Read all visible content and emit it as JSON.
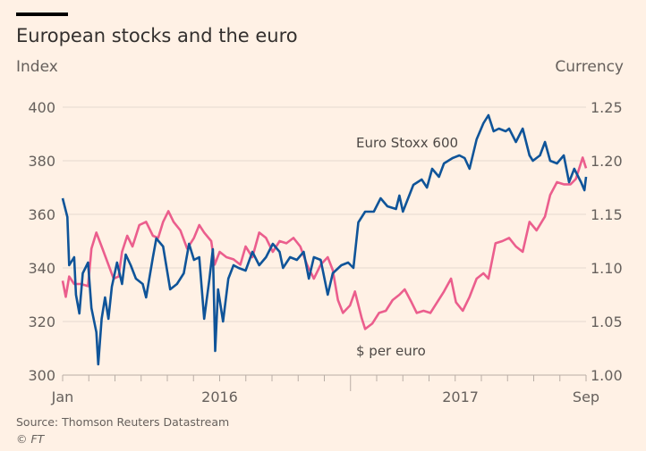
{
  "chart_data": {
    "type": "line",
    "title": "European stocks and the euro",
    "ylabel_left": "Index",
    "ylabel_right": "Currency",
    "ylim_left": [
      300,
      400
    ],
    "ylim_right": [
      1.0,
      1.25
    ],
    "yticks_left": [
      "400",
      "380",
      "360",
      "340",
      "320",
      "300"
    ],
    "yticks_right": [
      "1.25",
      "1.20",
      "1.15",
      "1.10",
      "1.05",
      "1.00"
    ],
    "xlim_months": [
      0,
      20
    ],
    "x_unit": "months since start",
    "xtick_labels": [
      {
        "label": "Jan",
        "month": 0
      },
      {
        "label": "2016",
        "month": 6
      },
      {
        "label": "2017",
        "month": 15.2
      },
      {
        "label": "Sep",
        "month": 20
      }
    ],
    "minor_tick_count": 21,
    "long_tick_month": 11,
    "grid": true,
    "series": [
      {
        "name": "Euro Stoxx 600",
        "axis": "left",
        "color": "#0f5499",
        "x": [
          0,
          0.18,
          0.25,
          0.44,
          0.51,
          0.64,
          0.77,
          0.97,
          1.1,
          1.29,
          1.36,
          1.49,
          1.62,
          1.75,
          1.88,
          2.08,
          2.27,
          2.41,
          2.6,
          2.8,
          3.06,
          3.19,
          3.45,
          3.58,
          3.84,
          4.11,
          4.37,
          4.63,
          4.83,
          5.02,
          5.22,
          5.41,
          5.61,
          5.74,
          5.83,
          5.94,
          6.13,
          6.33,
          6.53,
          6.72,
          6.99,
          7.25,
          7.51,
          7.77,
          8.03,
          8.29,
          8.42,
          8.69,
          8.95,
          9.21,
          9.41,
          9.6,
          9.86,
          10.13,
          10.32,
          10.65,
          10.91,
          11.11,
          11.3,
          11.56,
          11.89,
          12.15,
          12.41,
          12.74,
          12.87,
          13.0,
          13.4,
          13.72,
          13.92,
          14.12,
          14.38,
          14.57,
          14.9,
          15.16,
          15.36,
          15.55,
          15.82,
          16.08,
          16.27,
          16.47,
          16.67,
          16.93,
          17.06,
          17.32,
          17.58,
          17.84,
          17.97,
          18.24,
          18.43,
          18.63,
          18.89,
          19.15,
          19.35,
          19.55,
          19.81,
          19.94,
          20
        ],
        "values": [
          366,
          359,
          341,
          344,
          330,
          323,
          338,
          342,
          325,
          316,
          304,
          321,
          329,
          321,
          333,
          342,
          334,
          345,
          341,
          336,
          334,
          329,
          344,
          351,
          348,
          332,
          334,
          338,
          349,
          343,
          344,
          321,
          336,
          347,
          309,
          332,
          320,
          336,
          341,
          340,
          339,
          346,
          341,
          344,
          349,
          346,
          340,
          344,
          343,
          346,
          336,
          344,
          343,
          330,
          338,
          341,
          342,
          340,
          357,
          361,
          361,
          366,
          363,
          362,
          367,
          361,
          371,
          373,
          370,
          377,
          374,
          379,
          381,
          382,
          381,
          377,
          388,
          394,
          397,
          391,
          392,
          391,
          392,
          387,
          392,
          382,
          380,
          382,
          387,
          380,
          379,
          382,
          372,
          377,
          372,
          369,
          374
        ]
      },
      {
        "name": "$ per euro",
        "axis": "right",
        "color": "#eb5e8d",
        "x": [
          0,
          0.12,
          0.25,
          0.44,
          0.7,
          0.97,
          1.1,
          1.29,
          1.49,
          1.75,
          1.95,
          2.14,
          2.27,
          2.47,
          2.67,
          2.93,
          3.19,
          3.45,
          3.65,
          3.84,
          4.04,
          4.24,
          4.5,
          4.76,
          5.02,
          5.22,
          5.41,
          5.68,
          5.81,
          6.0,
          6.26,
          6.53,
          6.79,
          6.99,
          7.25,
          7.51,
          7.77,
          8.03,
          8.29,
          8.55,
          8.82,
          9.08,
          9.34,
          9.6,
          9.86,
          10.13,
          10.32,
          10.52,
          10.71,
          10.98,
          11.17,
          11.43,
          11.56,
          11.83,
          12.09,
          12.35,
          12.61,
          12.87,
          13.07,
          13.33,
          13.53,
          13.79,
          14.05,
          14.31,
          14.57,
          14.84,
          15.03,
          15.29,
          15.55,
          15.82,
          16.08,
          16.27,
          16.54,
          16.8,
          17.06,
          17.32,
          17.58,
          17.84,
          18.11,
          18.43,
          18.63,
          18.89,
          19.15,
          19.41,
          19.61,
          19.87,
          20
        ],
        "values": [
          1.088,
          1.073,
          1.092,
          1.085,
          1.085,
          1.083,
          1.118,
          1.133,
          1.12,
          1.103,
          1.09,
          1.092,
          1.115,
          1.13,
          1.12,
          1.14,
          1.143,
          1.13,
          1.128,
          1.143,
          1.153,
          1.143,
          1.135,
          1.118,
          1.128,
          1.14,
          1.133,
          1.125,
          1.103,
          1.115,
          1.11,
          1.108,
          1.103,
          1.12,
          1.11,
          1.133,
          1.128,
          1.115,
          1.125,
          1.123,
          1.128,
          1.12,
          1.103,
          1.09,
          1.103,
          1.11,
          1.098,
          1.07,
          1.058,
          1.065,
          1.078,
          1.053,
          1.043,
          1.048,
          1.058,
          1.06,
          1.07,
          1.075,
          1.08,
          1.068,
          1.058,
          1.06,
          1.058,
          1.068,
          1.078,
          1.09,
          1.068,
          1.06,
          1.073,
          1.09,
          1.095,
          1.09,
          1.123,
          1.125,
          1.128,
          1.12,
          1.115,
          1.143,
          1.135,
          1.148,
          1.168,
          1.18,
          1.178,
          1.178,
          1.183,
          1.203,
          1.193
        ]
      }
    ],
    "annotations": [
      "Euro Stoxx 600",
      "$ per euro"
    ]
  },
  "footer": {
    "source": "Source: Thomson Reuters Datastream",
    "credit": "© FT"
  },
  "colors": {
    "background": "#fff1e5",
    "grid": "#e6d9ce",
    "text": "#66605c"
  }
}
